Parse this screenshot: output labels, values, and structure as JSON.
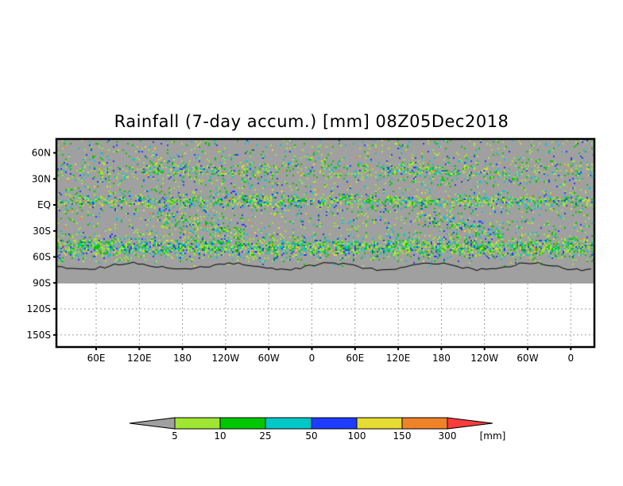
{
  "title": "Rainfall (7-day accum.) [mm] 08Z05Dec2018",
  "axes": {
    "lat_labels": [
      "60N",
      "30N",
      "EQ",
      "30S",
      "60S",
      "90S",
      "120S",
      "150S"
    ],
    "lat_values": [
      60,
      30,
      0,
      -30,
      -60,
      -90,
      -120,
      -150
    ],
    "lon_labels": [
      "60E",
      "120E",
      "180",
      "120W",
      "60W",
      "0",
      "60E",
      "120E",
      "180",
      "120W",
      "60W",
      "0"
    ],
    "lon_values": [
      60,
      120,
      180,
      240,
      300,
      360,
      420,
      480,
      540,
      600,
      660,
      720
    ]
  },
  "colorbar": {
    "unit": "[mm]",
    "thresholds": [
      "5",
      "10",
      "25",
      "50",
      "100",
      "150",
      "300"
    ],
    "colors": [
      "#a0a0a0",
      "#a0e632",
      "#00c800",
      "#00c8c8",
      "#1e3cff",
      "#e6dc32",
      "#f08228",
      "#fa3c3c"
    ]
  },
  "colors": {
    "land_no_rain": "#a0a0a0",
    "coast": "#000000",
    "grid": "#a0a0a0"
  }
}
